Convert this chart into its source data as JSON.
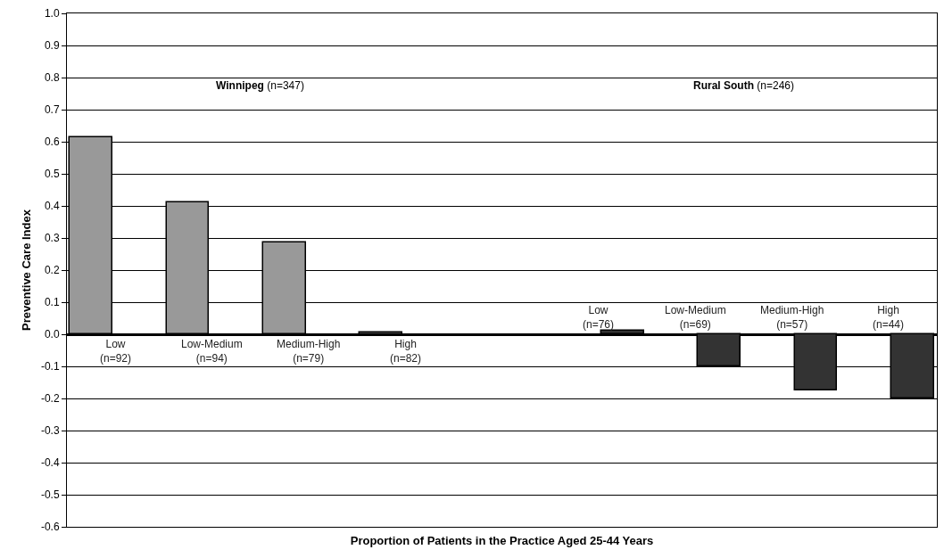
{
  "chart_data": {
    "type": "bar",
    "xlabel": "Proportion of Patients in the Practice Aged 25-44 Years",
    "ylabel": "Preventive Care Index",
    "categories": [
      "Low\n(n=92)",
      "Low-Medium\n(n=94)",
      "Medium-High\n(n=79)",
      "High\n(n=82)",
      null,
      "Low\n(n=76)",
      "Low-Medium\n(n=69)",
      "Medium-High\n(n=57)",
      "High\n(n=44)"
    ],
    "series": [
      {
        "color": "#999999",
        "values": [
          0.615,
          0.41,
          0.285,
          0.005,
          null,
          null,
          null,
          null,
          null
        ]
      },
      {
        "color": "#333333",
        "values": [
          null,
          null,
          null,
          null,
          null,
          0.01,
          -0.1,
          -0.175,
          -0.2
        ]
      }
    ],
    "ylim": [
      -0.6,
      1.0
    ],
    "yticks": [
      {
        "value": -0.6,
        "label": "-0.6"
      },
      {
        "value": -0.5,
        "label": "-0.5"
      },
      {
        "value": -0.4,
        "label": "-0.4"
      },
      {
        "value": -0.3,
        "label": "-0.3"
      },
      {
        "value": -0.2,
        "label": "-0.2"
      },
      {
        "value": -0.1,
        "label": "-0.1"
      },
      {
        "value": 0,
        "label": "0.0"
      },
      {
        "value": 0.1,
        "label": "0.1"
      },
      {
        "value": 0.2,
        "label": "0.2"
      },
      {
        "value": 0.3,
        "label": "0.3"
      },
      {
        "value": 0.4,
        "label": "0.4"
      },
      {
        "value": 0.5,
        "label": "0.5"
      },
      {
        "value": 0.6,
        "label": "0.6"
      },
      {
        "value": 0.7,
        "label": "0.7"
      },
      {
        "value": 0.8,
        "label": "0.8"
      },
      {
        "value": 0.9,
        "label": "0.9"
      },
      {
        "value": 1.0,
        "label": "1.0"
      }
    ],
    "annotations": [
      "Winnipeg (n=347)",
      "Rural South (n=246)"
    ],
    "grid": "y",
    "legend": false
  }
}
